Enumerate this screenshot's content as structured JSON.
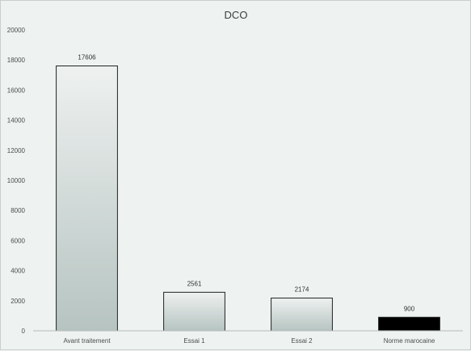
{
  "chart_data": {
    "type": "bar",
    "title": "DCO",
    "xlabel": "",
    "ylabel": "",
    "categories": [
      "Avant traitement",
      "Essai 1",
      "Essai 2",
      "Norme marocaine"
    ],
    "values": [
      17606,
      2561,
      2174,
      900
    ],
    "data_labels": [
      "17606",
      "2561",
      "2174",
      "900"
    ],
    "ylim": [
      0,
      20000
    ],
    "yticks": [
      0,
      2000,
      4000,
      6000,
      8000,
      10000,
      12000,
      14000,
      16000,
      18000,
      20000
    ],
    "grid": false,
    "legend": "none",
    "bar_colors": [
      "gradient-gray",
      "gradient-gray",
      "gradient-gray",
      "#000000"
    ]
  }
}
